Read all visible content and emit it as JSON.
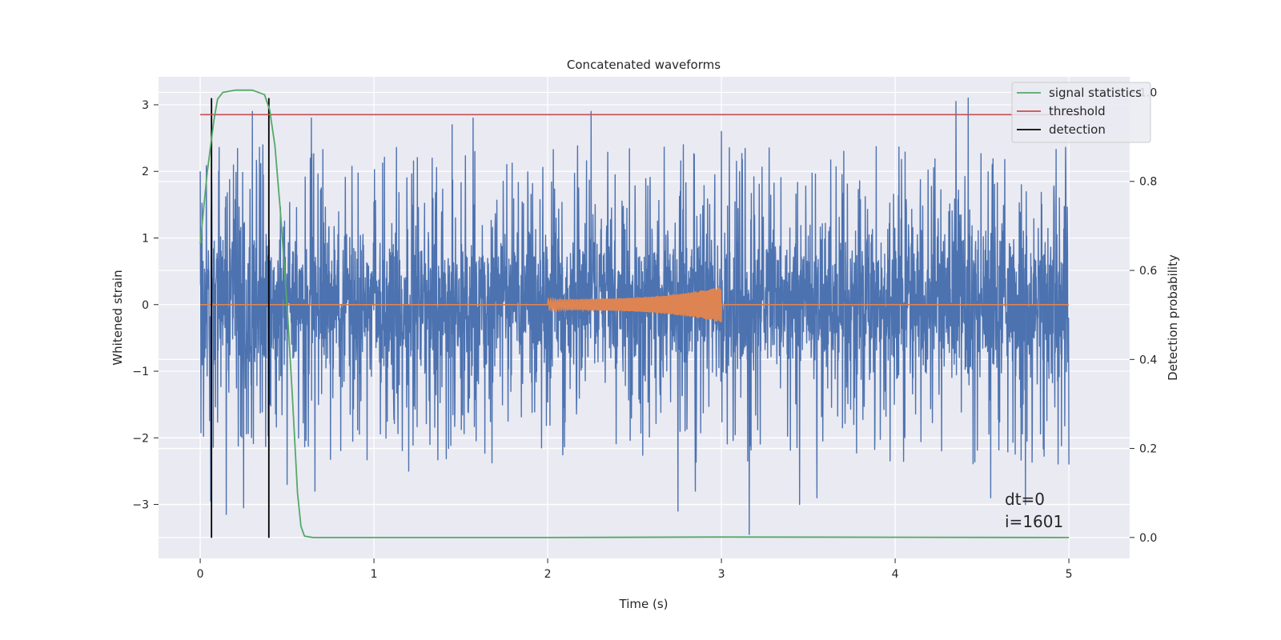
{
  "chart_data": {
    "type": "line",
    "title": "Concatenated waveforms",
    "xlabel": "Time (s)",
    "ylabel": "Whitened strain",
    "y2label": "Detection probability",
    "xlim": [
      -0.24,
      5.35
    ],
    "ylim": [
      -3.81,
      3.42
    ],
    "y2lim": [
      -0.047,
      1.035
    ],
    "xticks": [
      0,
      1,
      2,
      3,
      4,
      5
    ],
    "xtick_labels": [
      "0",
      "1",
      "2",
      "3",
      "4",
      "5"
    ],
    "yticks": [
      -3,
      -2,
      -1,
      0,
      1,
      2,
      3
    ],
    "ytick_labels": [
      "−3",
      "−2",
      "−1",
      "0",
      "1",
      "2",
      "3"
    ],
    "y2ticks": [
      0.0,
      0.2,
      0.4,
      0.6,
      0.8,
      1.0
    ],
    "y2tick_labels": [
      "0.0",
      "0.2",
      "0.4",
      "0.6",
      "0.8",
      "1.0"
    ],
    "grid": true,
    "legend_position": "top-right",
    "series": [
      {
        "kind": "noise",
        "x_range": [
          0,
          5
        ],
        "typical_amplitude": 0.85,
        "peak_envelope": [
          [
            0.0,
            2.0
          ],
          [
            0.06,
            -2.95
          ],
          [
            0.15,
            -3.15
          ],
          [
            0.25,
            -3.05
          ],
          [
            0.3,
            2.9
          ],
          [
            0.5,
            -2.7
          ],
          [
            0.64,
            2.8
          ],
          [
            0.66,
            -2.8
          ],
          [
            1.2,
            -2.5
          ],
          [
            1.45,
            2.7
          ],
          [
            1.57,
            2.8
          ],
          [
            2.25,
            2.9
          ],
          [
            2.75,
            -3.1
          ],
          [
            2.85,
            -2.8
          ],
          [
            3.0,
            2.6
          ],
          [
            3.16,
            -3.45
          ],
          [
            3.45,
            -3.0
          ],
          [
            3.55,
            -2.9
          ],
          [
            4.35,
            3.05
          ],
          [
            4.42,
            3.1
          ],
          [
            4.55,
            -2.9
          ],
          [
            4.75,
            -3.0
          ],
          [
            5.0,
            -2.4
          ]
        ],
        "color": "#4c72b0"
      },
      {
        "kind": "chirp",
        "x_range": [
          2.0,
          3.0
        ],
        "baseline": 0,
        "amplitude_start": 0.08,
        "amplitude_end": 0.27,
        "color": "#dd8452"
      },
      {
        "name": "signal statistics",
        "axis": "right",
        "color": "#55a868",
        "points": [
          [
            0.0,
            0.66
          ],
          [
            0.02,
            0.74
          ],
          [
            0.04,
            0.82
          ],
          [
            0.06,
            0.88
          ],
          [
            0.08,
            0.94
          ],
          [
            0.1,
            0.985
          ],
          [
            0.13,
            1.0
          ],
          [
            0.2,
            1.005
          ],
          [
            0.3,
            1.005
          ],
          [
            0.37,
            0.995
          ],
          [
            0.4,
            0.96
          ],
          [
            0.43,
            0.88
          ],
          [
            0.46,
            0.74
          ],
          [
            0.5,
            0.52
          ],
          [
            0.53,
            0.32
          ],
          [
            0.56,
            0.1
          ],
          [
            0.58,
            0.025
          ],
          [
            0.6,
            0.003
          ],
          [
            0.65,
            0.0
          ],
          [
            2.0,
            0.0
          ],
          [
            3.0,
            0.001
          ],
          [
            5.0,
            0.0
          ]
        ]
      },
      {
        "name": "threshold",
        "axis": "right",
        "color": "#c44e52",
        "value": 0.95,
        "x_range": [
          0,
          5.1
        ]
      },
      {
        "name": "detection",
        "color": "#000000",
        "x": [
          0.065,
          0.395
        ],
        "y_range": [
          -3.5,
          3.1
        ]
      }
    ],
    "annotations": [
      "dt=0",
      "i=1601"
    ]
  }
}
